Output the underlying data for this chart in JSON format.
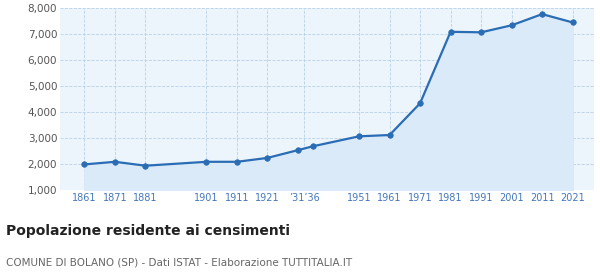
{
  "years": [
    1861,
    1871,
    1881,
    1901,
    1911,
    1921,
    1931,
    1936,
    1951,
    1961,
    1971,
    1981,
    1991,
    2001,
    2011,
    2021
  ],
  "population": [
    2000,
    2100,
    1950,
    2100,
    2100,
    2250,
    2550,
    2700,
    3080,
    3130,
    4350,
    7100,
    7080,
    7350,
    7780,
    7460
  ],
  "ylim": [
    1000,
    8000
  ],
  "yticks": [
    1000,
    2000,
    3000,
    4000,
    5000,
    6000,
    7000,
    8000
  ],
  "ytick_labels": [
    "1,000",
    "2,000",
    "3,000",
    "4,000",
    "5,000",
    "6,000",
    "7,000",
    "8,000"
  ],
  "x_tick_positions": [
    1861,
    1871,
    1881,
    1901,
    1911,
    1921,
    1933,
    1951,
    1961,
    1971,
    1981,
    1991,
    2001,
    2011,
    2021
  ],
  "x_tick_labels": [
    "1861",
    "1871",
    "1881",
    "1901",
    "1911",
    "1921",
    "’31’36",
    "1951",
    "1961",
    "1971",
    "1981",
    "1991",
    "2001",
    "2011",
    "2021"
  ],
  "line_color": "#2a6db5",
  "fill_color": "#daeaf8",
  "marker_color": "#2a6db5",
  "bg_color": "#edf5fc",
  "grid_color": "#b8d0e8",
  "title": "Popolazione residente ai censimenti",
  "subtitle": "COMUNE DI BOLANO (SP) - Dati ISTAT - Elaborazione TUTTITALIA.IT",
  "title_fontsize": 10,
  "subtitle_fontsize": 7.5,
  "xlim": [
    1853,
    2028
  ]
}
